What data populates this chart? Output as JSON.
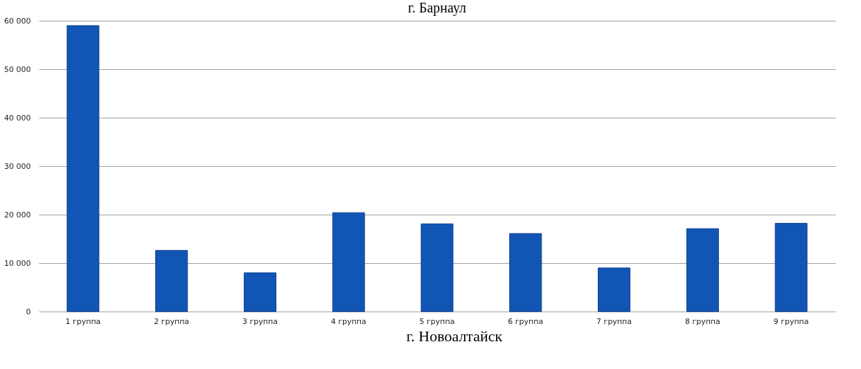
{
  "chart_data": {
    "type": "bar",
    "title": "г. Барнаул",
    "categories": [
      "1 группа",
      "2 группа",
      "3 группа",
      "4 группа",
      "5 группа",
      "6 группа",
      "7 группа",
      "8 группа",
      "9 группа"
    ],
    "series": [
      {
        "color": "#1155b5",
        "values": [
          59000,
          12600,
          8000,
          20400,
          18100,
          16100,
          9000,
          17100,
          18200
        ]
      }
    ],
    "ylim": [
      0,
      60000
    ],
    "yticks": [
      {
        "value": 0,
        "label": "0"
      },
      {
        "value": 10000,
        "label": "10 000"
      },
      {
        "value": 20000,
        "label": "20 000"
      },
      {
        "value": 30000,
        "label": "30 000"
      },
      {
        "value": 40000,
        "label": "40 000"
      },
      {
        "value": 50000,
        "label": "50 000"
      },
      {
        "value": 60000,
        "label": "60 000"
      }
    ],
    "grid": "y",
    "legend": false,
    "annotations": [
      "г. Новоалтайск"
    ]
  }
}
